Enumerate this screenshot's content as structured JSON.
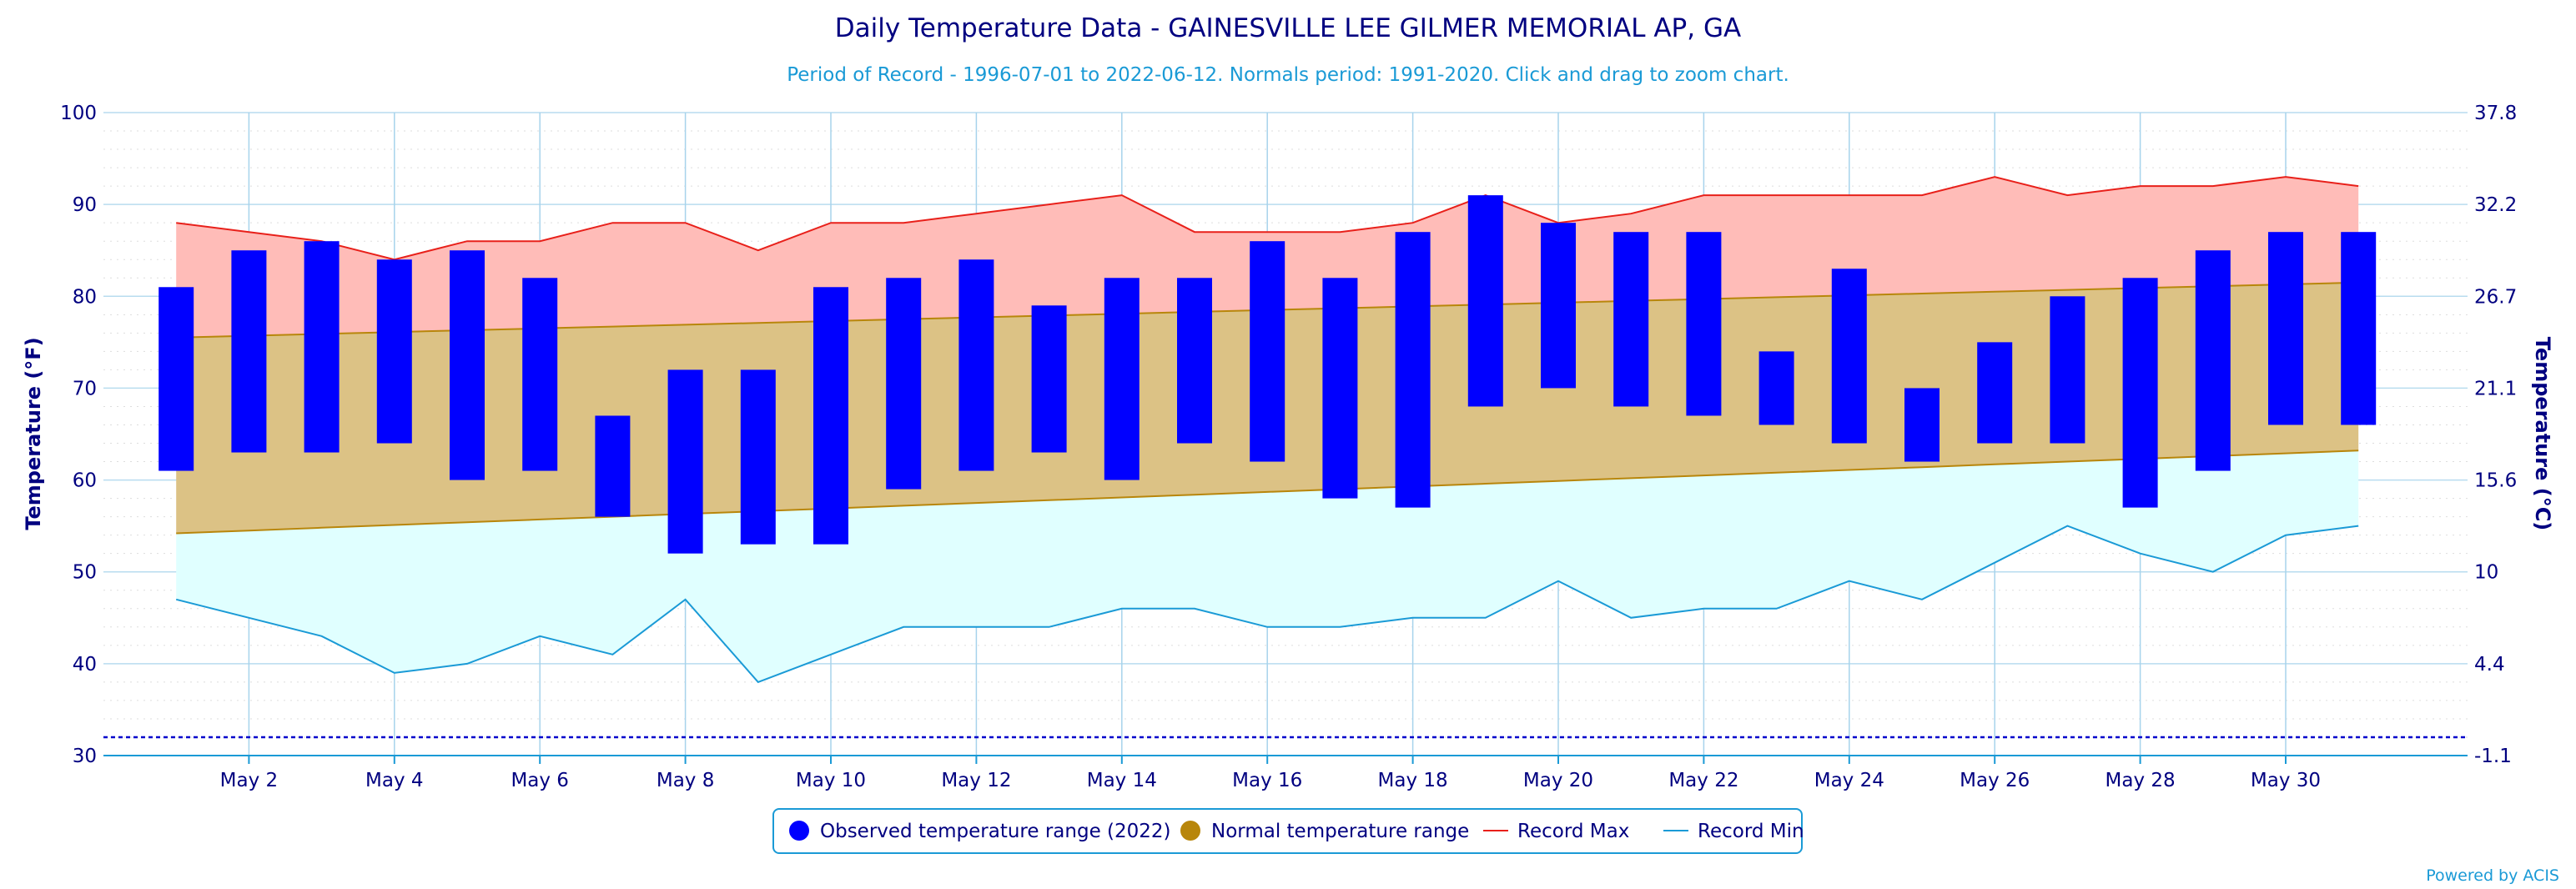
{
  "chart_data": {
    "type": "bar",
    "title": "Daily Temperature Data - GAINESVILLE LEE GILMER MEMORIAL AP, GA",
    "subtitle": "Period of Record - 1996-07-01 to 2022-06-12. Normals period: 1991-2020. Click and drag to zoom chart.",
    "ylabel_left": "Temperature (°F)",
    "ylabel_right": "Temperature (°C)",
    "ylim": [
      30,
      100
    ],
    "yticks_left": [
      "30",
      "40",
      "50",
      "60",
      "70",
      "80",
      "90",
      "100"
    ],
    "yticks_right": [
      "-1.1",
      "4.4",
      "10",
      "15.6",
      "21.1",
      "26.7",
      "32.2",
      "37.8"
    ],
    "x_days": [
      1,
      2,
      3,
      4,
      5,
      6,
      7,
      8,
      9,
      10,
      11,
      12,
      13,
      14,
      15,
      16,
      17,
      18,
      19,
      20,
      21,
      22,
      23,
      24,
      25,
      26,
      27,
      28,
      29,
      30,
      31
    ],
    "xticks": [
      {
        "day": 2,
        "label": "May 2"
      },
      {
        "day": 4,
        "label": "May 4"
      },
      {
        "day": 6,
        "label": "May 6"
      },
      {
        "day": 8,
        "label": "May 8"
      },
      {
        "day": 10,
        "label": "May 10"
      },
      {
        "day": 12,
        "label": "May 12"
      },
      {
        "day": 14,
        "label": "May 14"
      },
      {
        "day": 16,
        "label": "May 16"
      },
      {
        "day": 18,
        "label": "May 18"
      },
      {
        "day": 20,
        "label": "May 20"
      },
      {
        "day": 22,
        "label": "May 22"
      },
      {
        "day": 24,
        "label": "May 24"
      },
      {
        "day": 26,
        "label": "May 26"
      },
      {
        "day": 28,
        "label": "May 28"
      },
      {
        "day": 30,
        "label": "May 30"
      }
    ],
    "reference_line_f": 32,
    "series": [
      {
        "name": "Observed temperature range (2022)",
        "color": "#0000ff",
        "high": [
          81,
          85,
          86,
          84,
          85,
          82,
          67,
          72,
          72,
          81,
          82,
          84,
          79,
          82,
          82,
          86,
          82,
          87,
          91,
          88,
          87,
          87,
          74,
          83,
          70,
          75,
          80,
          82,
          85,
          87,
          87
        ],
        "low": [
          61,
          63,
          63,
          64,
          60,
          61,
          56,
          52,
          53,
          53,
          59,
          61,
          63,
          60,
          64,
          62,
          58,
          57,
          68,
          70,
          68,
          67,
          66,
          64,
          62,
          64,
          64,
          57,
          61,
          66,
          66
        ]
      },
      {
        "name": "Normal temperature range",
        "color": "#b8860b",
        "fill": "#dcc285",
        "high": [
          75.5,
          75.7,
          75.9,
          76.1,
          76.3,
          76.5,
          76.7,
          76.9,
          77.1,
          77.3,
          77.5,
          77.7,
          77.9,
          78.1,
          78.3,
          78.5,
          78.7,
          78.9,
          79.1,
          79.3,
          79.5,
          79.7,
          79.9,
          80.1,
          80.3,
          80.5,
          80.7,
          80.9,
          81.1,
          81.3,
          81.5
        ],
        "low": [
          54.2,
          54.5,
          54.8,
          55.1,
          55.4,
          55.7,
          56.0,
          56.3,
          56.6,
          56.9,
          57.2,
          57.5,
          57.8,
          58.1,
          58.4,
          58.7,
          59.0,
          59.3,
          59.6,
          59.9,
          60.2,
          60.5,
          60.8,
          61.1,
          61.4,
          61.7,
          62.0,
          62.3,
          62.6,
          62.9,
          63.2
        ]
      },
      {
        "name": "Record Max",
        "color": "#e8201a",
        "fill": "#ffbcb8",
        "values": [
          88,
          87,
          86,
          84,
          86,
          86,
          88,
          88,
          85,
          88,
          88,
          89,
          90,
          91,
          87,
          87,
          87,
          88,
          91,
          88,
          89,
          91,
          91,
          91,
          91,
          93,
          91,
          92,
          92,
          93,
          92
        ]
      },
      {
        "name": "Record Min",
        "color": "#1a9ad6",
        "fill": "#e0ffff",
        "values": [
          47,
          45,
          43,
          39,
          40,
          43,
          41,
          47,
          38,
          41,
          44,
          44,
          44,
          46,
          46,
          44,
          44,
          45,
          45,
          49,
          45,
          46,
          46,
          49,
          47,
          51,
          55,
          52,
          50,
          54,
          55
        ]
      }
    ],
    "legend": {
      "items": [
        {
          "label": "Observed temperature range (2022)",
          "marker": "circle",
          "color": "#0000ff"
        },
        {
          "label": "Normal temperature range",
          "marker": "circle",
          "color": "#b8860b"
        },
        {
          "label": "Record Max",
          "marker": "line",
          "color": "#e8201a"
        },
        {
          "label": "Record Min",
          "marker": "line",
          "color": "#1a9ad6"
        }
      ],
      "placement": "bottom-center"
    },
    "credit": "Powered by ACIS"
  }
}
